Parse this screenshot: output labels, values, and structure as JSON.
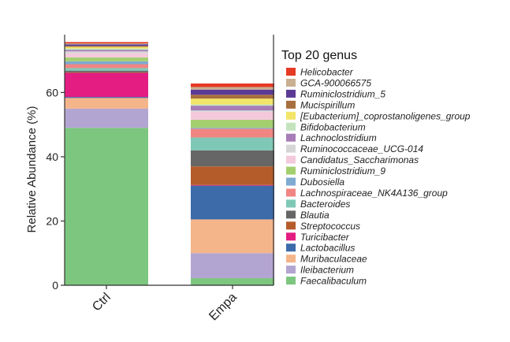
{
  "chart_data": {
    "type": "stacked-bar",
    "ylabel": "Relative Abundance (%)",
    "xlabel": "",
    "ylim": [
      0,
      78
    ],
    "yticks": [
      0,
      20,
      40,
      60
    ],
    "categories": [
      "Ctrl",
      "Empa"
    ],
    "legend_title": "Top 20 genus",
    "series": [
      {
        "name": "Faecalibaculum",
        "color": "#7DC67F",
        "values": [
          49.0,
          2.2
        ]
      },
      {
        "name": "Ileibacterium",
        "color": "#B3A5D1",
        "values": [
          6.0,
          7.8
        ]
      },
      {
        "name": "Muribaculaceae",
        "color": "#F5B58A",
        "values": [
          3.3,
          10.5
        ]
      },
      {
        "name": "Lactobacillus",
        "color": "#3D6BAA",
        "values": [
          0.3,
          10.5
        ]
      },
      {
        "name": "Turicibacter",
        "color": "#E31D82",
        "values": [
          7.5,
          0.2
        ]
      },
      {
        "name": "Streptococcus",
        "color": "#B55C2B",
        "values": [
          0.2,
          5.8
        ]
      },
      {
        "name": "Blautia",
        "color": "#666666",
        "values": [
          0.5,
          5.0
        ]
      },
      {
        "name": "Bacteroides",
        "color": "#80C8B6",
        "values": [
          0.8,
          4.0
        ]
      },
      {
        "name": "Lachnospiraceae_NK4A136_group",
        "color": "#F18582",
        "values": [
          1.2,
          2.7
        ]
      },
      {
        "name": "Dubosiella",
        "color": "#7FAAD1",
        "values": [
          0.9,
          0.3
        ]
      },
      {
        "name": "Ruminiclostridium_9",
        "color": "#A4CF6F",
        "values": [
          1.2,
          2.5
        ]
      },
      {
        "name": "Candidatus_Saccharimonas",
        "color": "#F4C9DC",
        "values": [
          1.3,
          2.5
        ]
      },
      {
        "name": "Ruminococcaceae_UCG-014",
        "color": "#D6D6D6",
        "values": [
          0.6,
          0.4
        ]
      },
      {
        "name": "Lachnoclostridium",
        "color": "#A77DB7",
        "values": [
          0.5,
          1.5
        ]
      },
      {
        "name": "Bifidobacterium",
        "color": "#C4E4BE",
        "values": [
          0.4,
          0.4
        ]
      },
      {
        "name": "[Eubacterium]_coprostanoligenes_group",
        "color": "#F3E569",
        "values": [
          0.5,
          1.8
        ]
      },
      {
        "name": "Mucispirillum",
        "color": "#A86F3E",
        "values": [
          0.3,
          1.2
        ]
      },
      {
        "name": "Ruminiclostridium_5",
        "color": "#5B3A95",
        "values": [
          0.5,
          1.6
        ]
      },
      {
        "name": "GCA-900066575",
        "color": "#C8B090",
        "values": [
          0.3,
          0.8
        ]
      },
      {
        "name": "Helicobacter",
        "color": "#E53A24",
        "values": [
          0.4,
          1.1
        ]
      }
    ]
  }
}
